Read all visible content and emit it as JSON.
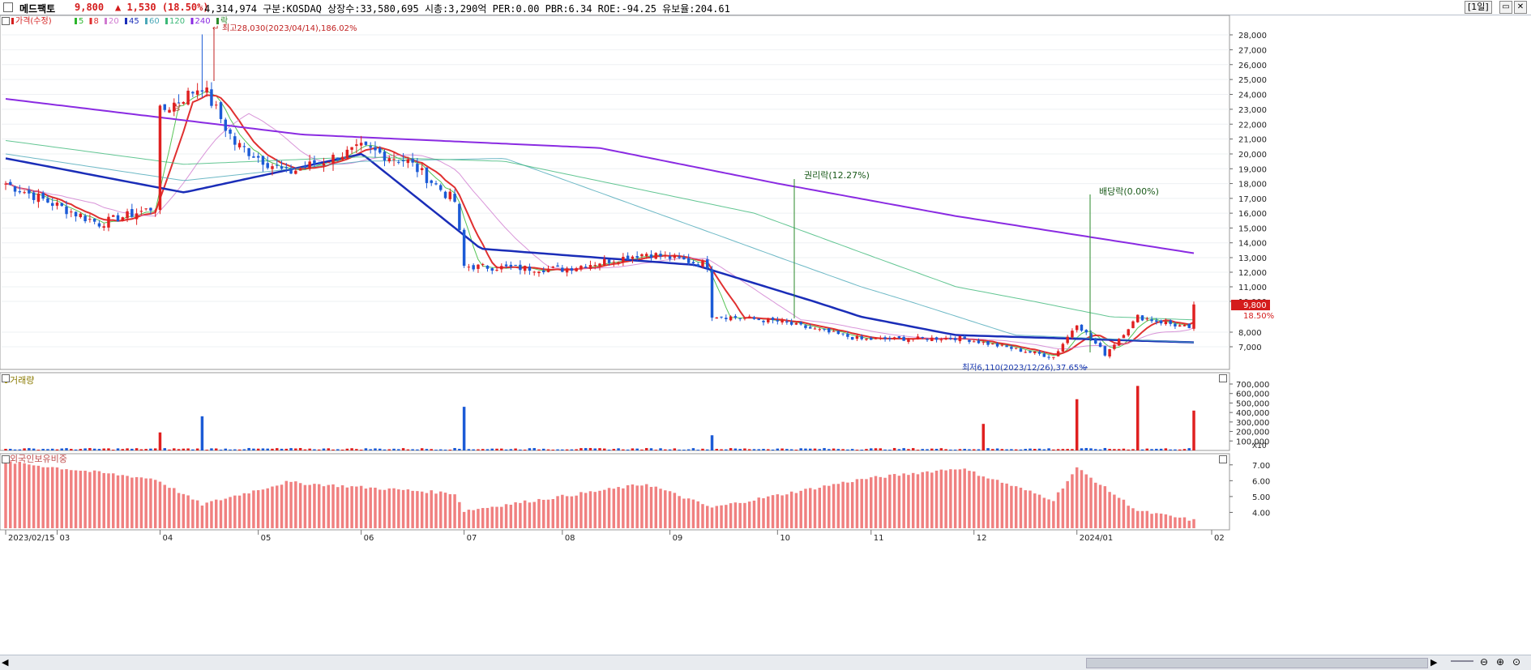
{
  "header": {
    "name": "메드팩토",
    "price": "9,800",
    "change": "▲ 1,530",
    "change_pct": "(18.50%)",
    "stats": "4,314,974  구분:KOSDAQ 상장수:33,580,695 시총:3,290억 PER:0.00 PBR:6.34 ROE:-94.25 유보율:204.61",
    "period": "[1일]"
  },
  "price_panel": {
    "legend": [
      {
        "label": "가격(수정)",
        "color": "#d42020"
      },
      {
        "label": "5",
        "color": "#2bb52b"
      },
      {
        "label": "8",
        "color": "#e03030"
      },
      {
        "label": "20",
        "color": "#d07ad0"
      },
      {
        "label": "45",
        "color": "#1a2db8"
      },
      {
        "label": "60",
        "color": "#4aa8b8"
      },
      {
        "label": "120",
        "color": "#3cb878"
      },
      {
        "label": "240",
        "color": "#8a2be2"
      },
      {
        "label": "락",
        "color": "#2a8a2a"
      }
    ],
    "annotations": {
      "high": "최고28,030(2023/04/14),186.02%",
      "low": "최저6,110(2023/12/26),37.65%",
      "rights": "권리락(12.27%)",
      "dividend": "배당락(0.00%)",
      "up_marker": "상"
    },
    "last_price_tag": "9,800",
    "last_pct_tag": "18.50%"
  },
  "volume_panel": {
    "title": "거래량"
  },
  "foreign_panel": {
    "title": "외국인보유비중"
  },
  "x_labels": [
    "2023/02/15",
    "03",
    "04",
    "05",
    "06",
    "07",
    "08",
    "09",
    "10",
    "11",
    "12",
    "2024/01",
    "02"
  ],
  "chart_data": [
    {
      "type": "candlestick",
      "title": "가격(수정)",
      "ylim": [
        6000,
        28500
      ],
      "yticks": [
        "28,000",
        "27,000",
        "26,000",
        "25,000",
        "24,000",
        "23,000",
        "22,000",
        "21,000",
        "20,000",
        "19,000",
        "18,000",
        "17,000",
        "16,000",
        "15,000",
        "14,000",
        "13,000",
        "12,000",
        "11,000",
        "10,000",
        "8,000",
        "7,000"
      ],
      "high": 28030,
      "low": 6110,
      "last_close": 9800,
      "prev_close": 8270,
      "ohlc_anchors": [
        {
          "date": "2023/02/15",
          "close": 18000
        },
        {
          "date": "2023/03/15",
          "close": 15300
        },
        {
          "date": "2023/03/31",
          "close": 16400
        },
        {
          "date": "2023/04/03",
          "close": 22800
        },
        {
          "date": "2023/04/14",
          "close": 24600
        },
        {
          "date": "2023/04/25",
          "close": 20700
        },
        {
          "date": "2023/05/10",
          "close": 18700
        },
        {
          "date": "2023/06/01",
          "close": 20400
        },
        {
          "date": "2023/06/15",
          "close": 19500
        },
        {
          "date": "2023/06/29",
          "close": 16800
        },
        {
          "date": "2023/07/03",
          "close": 12400
        },
        {
          "date": "2023/08/01",
          "close": 12200
        },
        {
          "date": "2023/08/25",
          "close": 13300
        },
        {
          "date": "2023/09/13",
          "close": 12500
        },
        {
          "date": "2023/09/14",
          "close": 9100
        },
        {
          "date": "2023/10/04",
          "close": 8700
        },
        {
          "date": "2023/10/30",
          "close": 7500
        },
        {
          "date": "2023/11/28",
          "close": 7600
        },
        {
          "date": "2023/12/26",
          "close": 6300
        },
        {
          "date": "2024/01/02",
          "close": 8600
        },
        {
          "date": "2024/01/10",
          "close": 6500
        },
        {
          "date": "2024/01/19",
          "close": 9000
        },
        {
          "date": "2024/02/05",
          "close": 8270
        },
        {
          "date": "2024/02/06",
          "close": 9800
        }
      ],
      "moving_averages": [
        {
          "name": "240",
          "points": [
            [
              0,
              23700
            ],
            [
              0.25,
              21300
            ],
            [
              0.5,
              20400
            ],
            [
              0.65,
              18000
            ],
            [
              0.8,
              15800
            ],
            [
              1,
              13300
            ]
          ]
        },
        {
          "name": "120",
          "points": [
            [
              0,
              20900
            ],
            [
              0.15,
              19300
            ],
            [
              0.3,
              19800
            ],
            [
              0.42,
              19500
            ],
            [
              0.63,
              16000
            ],
            [
              0.8,
              11000
            ],
            [
              0.93,
              9000
            ],
            [
              1,
              8800
            ]
          ]
        },
        {
          "name": "60",
          "points": [
            [
              0,
              20000
            ],
            [
              0.15,
              18200
            ],
            [
              0.3,
              19500
            ],
            [
              0.42,
              19700
            ],
            [
              0.6,
              14500
            ],
            [
              0.72,
              11000
            ],
            [
              0.85,
              7800
            ],
            [
              1,
              7300
            ]
          ]
        },
        {
          "name": "45",
          "points": [
            [
              0,
              19700
            ],
            [
              0.15,
              17400
            ],
            [
              0.3,
              20000
            ],
            [
              0.4,
              13600
            ],
            [
              0.58,
              12500
            ],
            [
              0.72,
              9000
            ],
            [
              0.8,
              7800
            ],
            [
              1,
              7300
            ]
          ]
        }
      ]
    },
    {
      "type": "bar",
      "title": "거래량",
      "yticks": [
        "700,000",
        "600,000",
        "500,000",
        "400,000",
        "300,000",
        "200,000",
        "100,000"
      ],
      "unit": "X10",
      "spikes": [
        {
          "date": "2023/04/03",
          "value": 190000
        },
        {
          "date": "2023/04/14",
          "value": 360000
        },
        {
          "date": "2023/07/03",
          "value": 460000
        },
        {
          "date": "2023/09/14",
          "value": 160000
        },
        {
          "date": "2023/12/05",
          "value": 280000
        },
        {
          "date": "2024/01/02",
          "value": 540000
        },
        {
          "date": "2024/01/19",
          "value": 680000
        },
        {
          "date": "2024/02/06",
          "value": 420000
        }
      ]
    },
    {
      "type": "bar",
      "title": "외국인보유비중",
      "yticks": [
        "7.00",
        "6.00",
        "5.00",
        "4.00"
      ],
      "ylim": [
        3.0,
        7.5
      ],
      "anchors": [
        {
          "date": "2023/02/15",
          "value": 7.2
        },
        {
          "date": "2023/03/31",
          "value": 6.1
        },
        {
          "date": "2023/04/14",
          "value": 4.5
        },
        {
          "date": "2023/05/10",
          "value": 5.9
        },
        {
          "date": "2023/06/29",
          "value": 5.2
        },
        {
          "date": "2023/07/03",
          "value": 4.1
        },
        {
          "date": "2023/08/25",
          "value": 5.8
        },
        {
          "date": "2023/09/14",
          "value": 4.3
        },
        {
          "date": "2023/10/30",
          "value": 6.1
        },
        {
          "date": "2023/11/28",
          "value": 6.8
        },
        {
          "date": "2023/12/26",
          "value": 4.8
        },
        {
          "date": "2024/01/02",
          "value": 6.8
        },
        {
          "date": "2024/01/19",
          "value": 4.1
        },
        {
          "date": "2024/02/06",
          "value": 3.5
        }
      ]
    }
  ]
}
